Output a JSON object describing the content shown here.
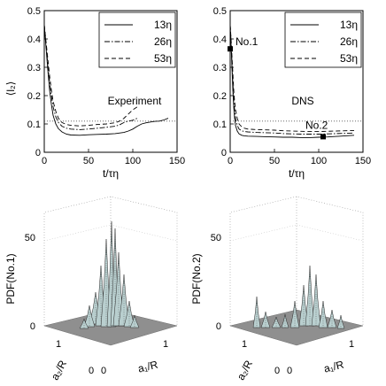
{
  "chart_data": [
    {
      "type": "line",
      "panel": "top-left",
      "annotation": "Experiment",
      "ylabel": "⟨l₂⟩",
      "xlabel": "t/τη",
      "xlim": [
        0,
        150
      ],
      "ylim": [
        0,
        0.5
      ],
      "xticks": [
        "0",
        "50",
        "100",
        "150"
      ],
      "yticks": [
        "0",
        "0.1",
        "0.2",
        "0.3",
        "0.4",
        "0.5"
      ],
      "reference_line_y": 0.11,
      "legend_position": "top-right",
      "series": [
        {
          "name": "13η",
          "dash": "solid",
          "x": [
            0,
            2,
            4,
            6,
            8,
            10,
            13,
            16,
            20,
            25,
            30,
            40,
            50,
            60,
            70,
            80,
            90,
            95,
            100,
            105,
            110,
            115,
            120,
            125,
            130,
            135,
            140
          ],
          "y": [
            0.45,
            0.37,
            0.29,
            0.22,
            0.17,
            0.13,
            0.1,
            0.083,
            0.072,
            0.064,
            0.061,
            0.06,
            0.062,
            0.063,
            0.064,
            0.066,
            0.07,
            0.075,
            0.082,
            0.092,
            0.1,
            0.104,
            0.107,
            0.109,
            0.11,
            0.114,
            0.12
          ]
        },
        {
          "name": "26η",
          "dash": "dashdot",
          "x": [
            0,
            2,
            4,
            6,
            8,
            10,
            13,
            16,
            20,
            25,
            30,
            40,
            50,
            60,
            70,
            80,
            85,
            90,
            95,
            100,
            105
          ],
          "y": [
            0.45,
            0.38,
            0.31,
            0.25,
            0.2,
            0.16,
            0.125,
            0.105,
            0.092,
            0.085,
            0.082,
            0.08,
            0.082,
            0.085,
            0.088,
            0.092,
            0.097,
            0.105,
            0.11,
            0.113,
            0.12
          ]
        },
        {
          "name": "53η",
          "dash": "dashed",
          "x": [
            0,
            2,
            4,
            6,
            8,
            10,
            13,
            16,
            20,
            25,
            30,
            40,
            50,
            60,
            70,
            80,
            85,
            90,
            95,
            100,
            105
          ],
          "y": [
            0.45,
            0.39,
            0.33,
            0.27,
            0.22,
            0.18,
            0.145,
            0.12,
            0.105,
            0.098,
            0.095,
            0.093,
            0.095,
            0.098,
            0.1,
            0.104,
            0.11,
            0.12,
            0.135,
            0.15,
            0.16
          ]
        }
      ]
    },
    {
      "type": "line",
      "panel": "top-right",
      "annotation": "DNS",
      "xlabel": "t/τη",
      "xlim": [
        0,
        150
      ],
      "ylim": [
        0,
        0.5
      ],
      "xticks": [
        "0",
        "50",
        "100",
        "150"
      ],
      "yticks": [
        "0",
        "0.1",
        "0.2",
        "0.3",
        "0.4",
        "0.5"
      ],
      "reference_line_y": 0.11,
      "legend_position": "top-right",
      "markers": [
        {
          "label": "No.1",
          "x": 0,
          "y": 0.365
        },
        {
          "label": "No.2",
          "x": 105,
          "y": 0.055
        }
      ],
      "series": [
        {
          "name": "13η",
          "dash": "solid",
          "x": [
            0,
            1,
            2,
            3,
            4,
            5,
            6,
            8,
            10,
            13,
            16,
            20,
            30,
            40,
            50,
            60,
            70,
            80,
            90,
            100,
            110,
            120,
            130,
            140
          ],
          "y": [
            0.45,
            0.38,
            0.3,
            0.22,
            0.16,
            0.12,
            0.095,
            0.075,
            0.065,
            0.06,
            0.058,
            0.057,
            0.056,
            0.055,
            0.054,
            0.053,
            0.053,
            0.052,
            0.052,
            0.053,
            0.054,
            0.056,
            0.058,
            0.06
          ]
        },
        {
          "name": "26η",
          "dash": "dashdot",
          "x": [
            0,
            1,
            2,
            3,
            4,
            5,
            6,
            8,
            10,
            13,
            16,
            20,
            30,
            40,
            50,
            60,
            70,
            80,
            90,
            100,
            110,
            120,
            130,
            140
          ],
          "y": [
            0.45,
            0.39,
            0.32,
            0.25,
            0.19,
            0.15,
            0.12,
            0.095,
            0.082,
            0.076,
            0.073,
            0.072,
            0.07,
            0.069,
            0.068,
            0.066,
            0.065,
            0.064,
            0.064,
            0.064,
            0.065,
            0.066,
            0.067,
            0.068
          ]
        },
        {
          "name": "53η",
          "dash": "dashed",
          "x": [
            0,
            1,
            2,
            3,
            4,
            5,
            6,
            8,
            10,
            13,
            16,
            20,
            30,
            40,
            50,
            60,
            70,
            80,
            90,
            100,
            110,
            120,
            130,
            140
          ],
          "y": [
            0.45,
            0.4,
            0.34,
            0.28,
            0.22,
            0.18,
            0.15,
            0.12,
            0.1,
            0.09,
            0.085,
            0.082,
            0.08,
            0.079,
            0.078,
            0.076,
            0.075,
            0.074,
            0.073,
            0.073,
            0.074,
            0.075,
            0.076,
            0.077
          ]
        }
      ]
    },
    {
      "type": "surface",
      "panel": "bottom-left",
      "zlabel": "PDF(No.1)",
      "zticks": [
        "0",
        "50"
      ],
      "xlabel": "a₁/R",
      "ylabel": "a₂/R",
      "x_ticks": [
        "0",
        "1"
      ],
      "y_ticks": [
        "0",
        "1"
      ],
      "zlim": [
        0,
        50
      ]
    },
    {
      "type": "surface",
      "panel": "bottom-right",
      "zlabel": "PDF(No.2)",
      "zticks": [
        "0",
        "50"
      ],
      "xlabel": "a₁/R",
      "ylabel": "a₂/R",
      "x_ticks": [
        "0",
        "1"
      ],
      "y_ticks": [
        "0",
        "1"
      ],
      "zlim": [
        0,
        50
      ]
    }
  ]
}
